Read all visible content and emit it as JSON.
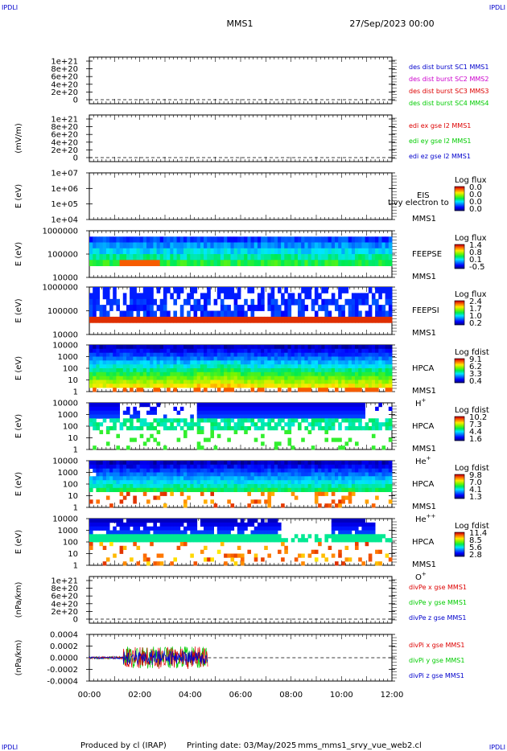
{
  "header": {
    "corner_tl": "IPDLI",
    "corner_tr": "IPDLI",
    "corner_bl": "IPDLI",
    "corner_br": "IPDLI",
    "spacecraft": "MMS1",
    "date": "27/Sep/2023 00:00"
  },
  "footer": {
    "produced": "Produced by cl (IRAP)",
    "printing": "Printing date: 03/May/2025",
    "file": "mms_mms1_srvy_vue_web2.cl"
  },
  "colors": {
    "red": "#dd0000",
    "green": "#00cc00",
    "blue": "#0000cc",
    "magenta": "#cc00cc"
  },
  "chart_data": {
    "type": "stacked-timeseries",
    "x": {
      "ticks": [
        "00:00",
        "02:00",
        "04:00",
        "06:00",
        "08:00",
        "10:00",
        "12:00"
      ],
      "range_hours": [
        0,
        12
      ]
    },
    "panels": [
      {
        "kind": "line",
        "ylabel": "",
        "yticks": [
          "1e+21",
          "8e+20",
          "6e+20",
          "4e+20",
          "2e+20",
          "0"
        ],
        "legend": [
          "des dist burst SC1 MMS1",
          "des dist burst SC2 MMS2",
          "des dist burst SC3 MMS3",
          "des dist burst SC4 MMS4"
        ],
        "legend_colors": [
          "#0000cc",
          "#cc00cc",
          "#dd0000",
          "#00cc00"
        ]
      },
      {
        "kind": "line",
        "ylabel": "(mV/m)",
        "yticks": [
          "1e+21",
          "8e+20",
          "6e+20",
          "4e+20",
          "2e+20",
          "0"
        ],
        "legend": [
          "edi ex gse l2 MMS1",
          "edi ey gse l2 MMS1",
          "edi ez gse l2 MMS1"
        ],
        "legend_colors": [
          "#dd0000",
          "#00cc00",
          "#0000cc"
        ]
      },
      {
        "kind": "spec",
        "ylabel": "E (eV)",
        "yticks": [
          "1e+07",
          "1e+06",
          "1e+05",
          "1e+04"
        ],
        "labels": [
          "EIS",
          "MMS1"
        ],
        "extra": "tlvy electron to",
        "cbar_title": "Log flux",
        "cbar_ticks": [
          "0.0",
          "0.0",
          "0.0",
          "0.0"
        ],
        "empty": true
      },
      {
        "kind": "spec",
        "ylabel": "E (eV)",
        "yticks": [
          "1000000",
          "100000",
          "10000"
        ],
        "labels": [
          "FEEPSE",
          "MMS1"
        ],
        "cbar_title": "Log flux",
        "cbar_ticks": [
          "1.4",
          "0.8",
          "0.1",
          "-0.5"
        ]
      },
      {
        "kind": "spec",
        "ylabel": "E (eV)",
        "yticks": [
          "1000000",
          "100000",
          "10000"
        ],
        "labels": [
          "FEEPSI",
          "MMS1"
        ],
        "cbar_title": "Log flux",
        "cbar_ticks": [
          "2.4",
          "1.7",
          "1.0",
          "0.2"
        ]
      },
      {
        "kind": "spec",
        "ylabel": "E (eV)",
        "yticks": [
          "10000",
          "1000",
          "100",
          "10",
          "1"
        ],
        "labels": [
          "HPCA",
          "MMS1"
        ],
        "ion": "H",
        "charge": "+",
        "cbar_title": "Log fdist",
        "cbar_ticks": [
          "9.1",
          "6.2",
          "3.3",
          "0.4"
        ]
      },
      {
        "kind": "spec",
        "ylabel": "E (eV)",
        "yticks": [
          "10000",
          "1000",
          "100",
          "10",
          "1"
        ],
        "labels": [
          "HPCA",
          "MMS1"
        ],
        "ion": "He",
        "charge": "+",
        "cbar_title": "Log fdist",
        "cbar_ticks": [
          "10.2",
          "7.3",
          "4.4",
          "1.6"
        ]
      },
      {
        "kind": "spec",
        "ylabel": "E (eV)",
        "yticks": [
          "10000",
          "1000",
          "100",
          "10",
          "1"
        ],
        "labels": [
          "HPCA",
          "MMS1"
        ],
        "ion": "He",
        "charge": "++",
        "cbar_title": "Log fdist",
        "cbar_ticks": [
          "9.8",
          "7.0",
          "4.1",
          "1.3"
        ]
      },
      {
        "kind": "spec",
        "ylabel": "E (eV)",
        "yticks": [
          "10000",
          "1000",
          "100",
          "10",
          "1"
        ],
        "labels": [
          "HPCA",
          "MMS1"
        ],
        "ion": "O",
        "charge": "+",
        "cbar_title": "Log fdist",
        "cbar_ticks": [
          "11.4",
          "8.5",
          "5.6",
          "2.8"
        ]
      },
      {
        "kind": "line",
        "ylabel": "(nPa/km)",
        "yticks": [
          "1e+21",
          "8e+20",
          "6e+20",
          "4e+20",
          "2e+20",
          "0"
        ],
        "legend": [
          "divPe x gse MMS1",
          "divPe y gse MMS1",
          "divPe z gse MMS1"
        ],
        "legend_colors": [
          "#dd0000",
          "#00cc00",
          "#0000cc"
        ]
      },
      {
        "kind": "line",
        "ylabel": "(nPa/km)",
        "yticks": [
          "0.0004",
          "0.0002",
          "0.0000",
          "-0.0002",
          "-0.0004"
        ],
        "legend": [
          "divPi x gse MMS1",
          "divPi y gse MMS1",
          "divPi z gse MMS1"
        ],
        "legend_colors": [
          "#dd0000",
          "#00cc00",
          "#0000cc"
        ],
        "series_interval_hours": [
          0,
          4.7
        ],
        "burst_start_hours": 1.35
      }
    ]
  }
}
